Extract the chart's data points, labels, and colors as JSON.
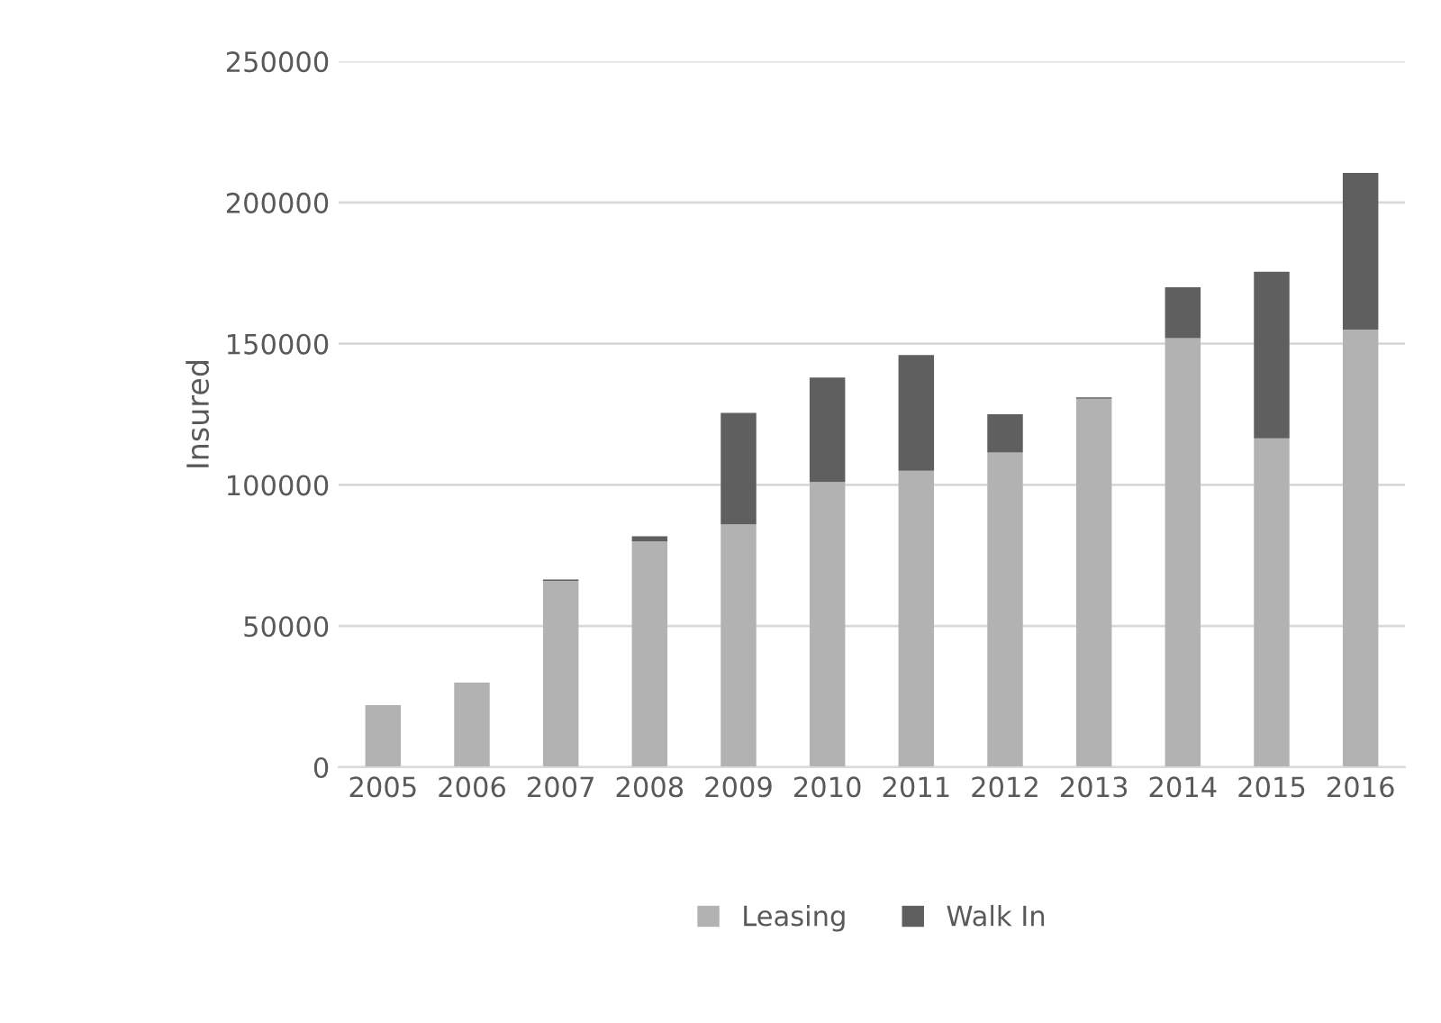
{
  "chart_data": {
    "type": "bar",
    "stacked": true,
    "ylabel": "Insured",
    "categories": [
      "2005",
      "2006",
      "2007",
      "2008",
      "2009",
      "2010",
      "2011",
      "2012",
      "2013",
      "2014",
      "2015",
      "2016"
    ],
    "series": [
      {
        "name": "Leasing",
        "color": "#b2b2b2",
        "values": [
          22000,
          30000,
          66000,
          80000,
          86000,
          101000,
          105000,
          111500,
          130500,
          152000,
          116500,
          155000
        ]
      },
      {
        "name": "Walk In",
        "color": "#5f5f5f",
        "values": [
          null,
          null,
          500,
          1800,
          39500,
          37000,
          41000,
          13500,
          500,
          18000,
          59000,
          55500
        ]
      }
    ],
    "ylim": [
      0,
      250000
    ],
    "yticks": [
      0,
      50000,
      100000,
      150000,
      200000,
      250000
    ],
    "grid": "y",
    "legend": "bottom"
  }
}
